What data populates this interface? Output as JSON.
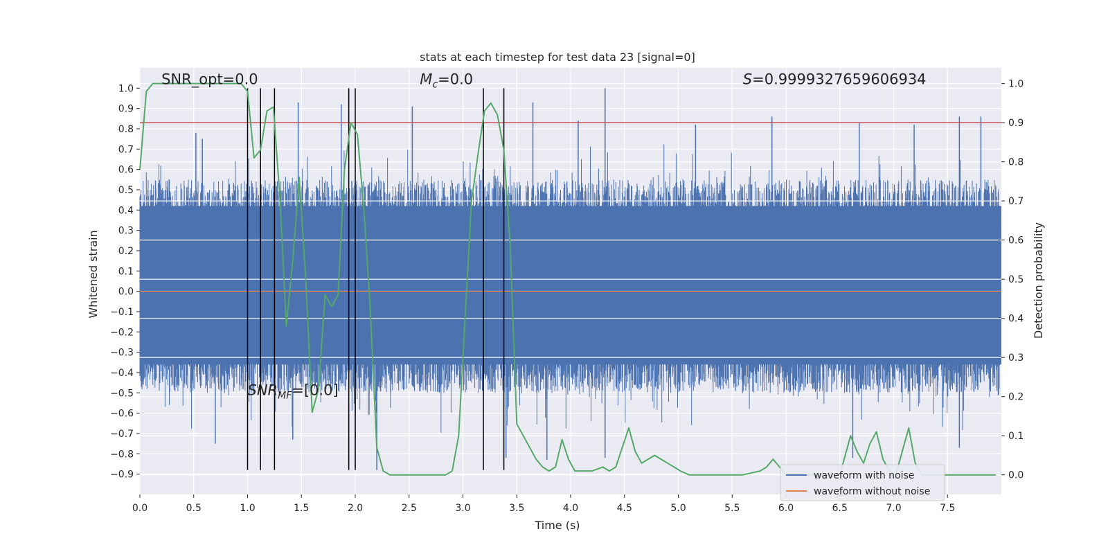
{
  "chart_data": {
    "type": "line",
    "title": "stats at each timestep for test data 23 [signal=0]",
    "xlabel": "Time (s)",
    "ylabel": "Whitened strain",
    "y2label": "Detection probability",
    "xlim": [
      0,
      8
    ],
    "ylim": [
      -1.0,
      1.1
    ],
    "y2lim": [
      -0.05,
      1.04
    ],
    "xticks": [
      0.0,
      0.5,
      1.0,
      1.5,
      2.0,
      2.5,
      3.0,
      3.5,
      4.0,
      4.5,
      5.0,
      5.5,
      6.0,
      6.5,
      7.0,
      7.5
    ],
    "yticks": [
      1.0,
      0.9,
      0.8,
      0.7,
      0.6,
      0.5,
      0.4,
      0.3,
      0.2,
      0.1,
      0.0,
      -0.1,
      -0.2,
      -0.3,
      -0.4,
      -0.5,
      -0.6,
      -0.7,
      -0.8,
      -0.9
    ],
    "y2ticks": [
      1.0,
      0.9,
      0.8,
      0.7,
      0.6,
      0.5,
      0.4,
      0.3,
      0.2,
      0.1,
      0.0
    ],
    "grid": true,
    "legend_position": "bottom-right",
    "series": [
      {
        "name": "waveform with noise",
        "color": "#4c72b0",
        "axis": "left",
        "description": "dense noisy strain waveform",
        "typical_range": [
          -0.5,
          0.55
        ],
        "extreme_range": [
          -0.88,
          1.0
        ],
        "spikes": [
          [
            0.52,
            0.78
          ],
          [
            0.58,
            0.75
          ],
          [
            1.47,
            0.93
          ],
          [
            1.87,
            0.92
          ],
          [
            2.53,
            0.91
          ],
          [
            3.65,
            0.93
          ],
          [
            4.07,
            0.84
          ],
          [
            4.32,
            1.0
          ],
          [
            5.16,
            0.82
          ],
          [
            5.87,
            0.86
          ],
          [
            6.68,
            0.83
          ],
          [
            7.19,
            0.82
          ],
          [
            7.61,
            0.86
          ],
          [
            7.81,
            0.86
          ],
          [
            0.7,
            -0.75
          ],
          [
            1.42,
            -0.73
          ],
          [
            2.0,
            -0.87
          ],
          [
            2.2,
            -0.88
          ],
          [
            3.4,
            -0.82
          ],
          [
            3.78,
            -0.83
          ],
          [
            4.32,
            -0.82
          ],
          [
            6.62,
            -0.82
          ],
          [
            7.61,
            -0.77
          ]
        ]
      },
      {
        "name": "waveform without noise",
        "color": "#dd8452",
        "axis": "left",
        "x": [
          0.0,
          8.0
        ],
        "y": [
          0.0,
          0.0
        ]
      },
      {
        "color": "#55a868",
        "axis": "right",
        "x": [
          0.0,
          0.06,
          0.12,
          0.5,
          0.94,
          1.0,
          1.06,
          1.12,
          1.18,
          1.24,
          1.3,
          1.36,
          1.42,
          1.48,
          1.54,
          1.6,
          1.66,
          1.72,
          1.78,
          1.84,
          1.9,
          1.96,
          2.02,
          2.08,
          2.14,
          2.2,
          2.26,
          2.32,
          2.38,
          2.5,
          2.7,
          2.84,
          2.9,
          2.96,
          3.02,
          3.08,
          3.14,
          3.2,
          3.26,
          3.32,
          3.38,
          3.44,
          3.5,
          3.56,
          3.62,
          3.68,
          3.74,
          3.8,
          3.86,
          3.92,
          3.98,
          4.04,
          4.1,
          4.2,
          4.3,
          4.36,
          4.42,
          4.48,
          4.54,
          4.6,
          4.66,
          4.72,
          4.78,
          4.84,
          4.9,
          4.96,
          5.02,
          5.1,
          5.2,
          5.4,
          5.6,
          5.76,
          5.82,
          5.88,
          5.94,
          6.0,
          6.5,
          6.6,
          6.66,
          6.72,
          6.78,
          6.84,
          6.9,
          6.96,
          7.02,
          7.08,
          7.14,
          7.2,
          7.26,
          7.32,
          7.95
        ],
        "y": [
          0.78,
          0.98,
          1.0,
          1.0,
          1.0,
          0.98,
          0.81,
          0.83,
          0.93,
          0.94,
          0.71,
          0.38,
          0.55,
          0.76,
          0.5,
          0.16,
          0.22,
          0.46,
          0.43,
          0.46,
          0.78,
          0.9,
          0.87,
          0.68,
          0.42,
          0.07,
          0.01,
          0.0,
          0.0,
          0.0,
          0.0,
          0.0,
          0.01,
          0.1,
          0.4,
          0.7,
          0.82,
          0.93,
          0.95,
          0.92,
          0.83,
          0.58,
          0.13,
          0.1,
          0.07,
          0.04,
          0.02,
          0.01,
          0.02,
          0.09,
          0.04,
          0.01,
          0.01,
          0.01,
          0.02,
          0.01,
          0.02,
          0.07,
          0.12,
          0.06,
          0.03,
          0.04,
          0.05,
          0.04,
          0.03,
          0.02,
          0.01,
          0.0,
          0.0,
          0.0,
          0.0,
          0.01,
          0.02,
          0.04,
          0.02,
          0.0,
          0.0,
          0.1,
          0.06,
          0.03,
          0.08,
          0.11,
          0.04,
          0.01,
          0.0,
          0.06,
          0.12,
          0.03,
          0.0,
          0.0,
          0.0
        ]
      },
      {
        "color": "#c44e52",
        "axis": "right",
        "description": "horizontal threshold line",
        "y": 0.9
      }
    ],
    "vertical_lines": {
      "color": "#000000",
      "x": [
        1.0,
        1.12,
        1.25,
        1.94,
        2.0,
        3.19,
        3.38
      ],
      "y_range": [
        -0.88,
        1.0
      ]
    },
    "annotations": [
      {
        "text": "SNR_opt=0.0",
        "x": 0.2,
        "y": 1.02
      },
      {
        "text": "M",
        "subscript": "c",
        "suffix": "=0.0",
        "x": 2.6,
        "y": 1.02
      },
      {
        "text": "S",
        "suffix": "=0.9999327659606934",
        "x": 5.6,
        "y": 1.02
      },
      {
        "text": "SNR",
        "subscript": "MF",
        "suffix": "=[0.0]",
        "x": 1.0,
        "y": -0.51
      }
    ]
  }
}
